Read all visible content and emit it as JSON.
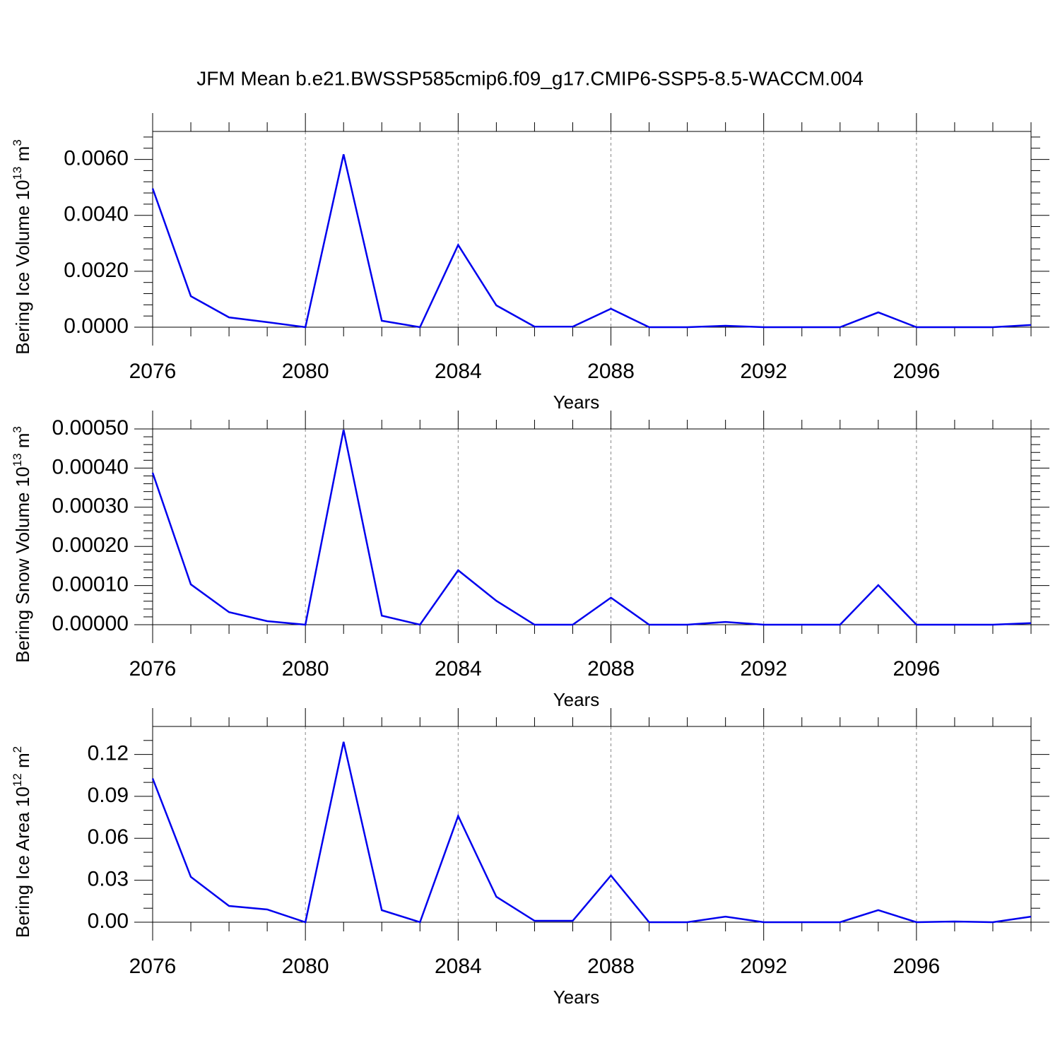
{
  "title": "JFM Mean b.e21.BWSSP585cmip6.f09_g17.CMIP6-SSP5-8.5-WACCM.004",
  "chart_data": [
    {
      "type": "line",
      "xlabel": "Years",
      "ylabel": {
        "text": "Bering Ice Volume 10",
        "exp": "13",
        "unit": " m",
        "unit_exp": "3"
      },
      "x": [
        2076,
        2077,
        2078,
        2079,
        2080,
        2081,
        2082,
        2083,
        2084,
        2085,
        2086,
        2087,
        2088,
        2089,
        2090,
        2091,
        2092,
        2093,
        2094,
        2095,
        2096,
        2097,
        2098,
        2099
      ],
      "xlim": [
        2076,
        2099
      ],
      "xticks": [
        2076,
        2080,
        2084,
        2088,
        2092,
        2096
      ],
      "ylim": [
        0,
        0.007
      ],
      "yticks": [
        {
          "value": 0,
          "label": "0.0000"
        },
        {
          "value": 0.002,
          "label": "0.0020"
        },
        {
          "value": 0.004,
          "label": "0.0040"
        },
        {
          "value": 0.006,
          "label": "0.0060"
        }
      ],
      "y_minor_per_major": 5,
      "x_minor_per_major": 4,
      "grid": "x-dashed",
      "series": [
        {
          "color": "#0000ee",
          "values": [
            0.00496,
            0.00111,
            0.00035,
            0.00018,
            0,
            0.00618,
            0.00023,
            0,
            0.00294,
            0.00078,
            2e-05,
            2e-05,
            0.00066,
            0,
            0,
            5e-05,
            0,
            0,
            0,
            0.00053,
            0,
            0,
            0,
            8e-05
          ]
        }
      ]
    },
    {
      "type": "line",
      "xlabel": "Years",
      "ylabel": {
        "text": "Bering Snow Volume 10",
        "exp": "13",
        "unit": " m",
        "unit_exp": "3"
      },
      "x": [
        2076,
        2077,
        2078,
        2079,
        2080,
        2081,
        2082,
        2083,
        2084,
        2085,
        2086,
        2087,
        2088,
        2089,
        2090,
        2091,
        2092,
        2093,
        2094,
        2095,
        2096,
        2097,
        2098,
        2099
      ],
      "xlim": [
        2076,
        2099
      ],
      "xticks": [
        2076,
        2080,
        2084,
        2088,
        2092,
        2096
      ],
      "ylim": [
        0,
        0.0005
      ],
      "yticks": [
        {
          "value": 0,
          "label": "0.00000"
        },
        {
          "value": 0.0001,
          "label": "0.00010"
        },
        {
          "value": 0.0002,
          "label": "0.00020"
        },
        {
          "value": 0.0003,
          "label": "0.00030"
        },
        {
          "value": 0.0004,
          "label": "0.00040"
        },
        {
          "value": 0.0005,
          "label": "0.00050"
        }
      ],
      "y_minor_per_major": 5,
      "x_minor_per_major": 4,
      "grid": "x-dashed",
      "series": [
        {
          "color": "#0000ee",
          "values": [
            0.000388,
            0.000103,
            3.2e-05,
            9e-06,
            0,
            0.000498,
            2.3e-05,
            0,
            0.000139,
            6.1e-05,
            0,
            0,
            6.9e-05,
            0,
            0,
            7e-06,
            0,
            0,
            0,
            0.000101,
            0,
            0,
            0,
            4e-06
          ]
        }
      ]
    },
    {
      "type": "line",
      "xlabel": "Years",
      "ylabel": {
        "text": "Bering Ice Area 10",
        "exp": "12",
        "unit": " m",
        "unit_exp": "2"
      },
      "x": [
        2076,
        2077,
        2078,
        2079,
        2080,
        2081,
        2082,
        2083,
        2084,
        2085,
        2086,
        2087,
        2088,
        2089,
        2090,
        2091,
        2092,
        2093,
        2094,
        2095,
        2096,
        2097,
        2098,
        2099
      ],
      "xlim": [
        2076,
        2099
      ],
      "xticks": [
        2076,
        2080,
        2084,
        2088,
        2092,
        2096
      ],
      "ylim": [
        0,
        0.14
      ],
      "yticks": [
        {
          "value": 0,
          "label": "0.00"
        },
        {
          "value": 0.03,
          "label": "0.03"
        },
        {
          "value": 0.06,
          "label": "0.06"
        },
        {
          "value": 0.09,
          "label": "0.09"
        },
        {
          "value": 0.12,
          "label": "0.12"
        }
      ],
      "y_minor_per_major": 3,
      "x_minor_per_major": 4,
      "grid": "x-dashed",
      "series": [
        {
          "color": "#0000ee",
          "values": [
            0.1028,
            0.0324,
            0.0116,
            0.0091,
            0,
            0.129,
            0.0086,
            0,
            0.076,
            0.0182,
            0.001,
            0.001,
            0.0334,
            0,
            0,
            0.004,
            0,
            0,
            0,
            0.0086,
            0,
            0.0005,
            0,
            0.004
          ]
        }
      ]
    }
  ]
}
